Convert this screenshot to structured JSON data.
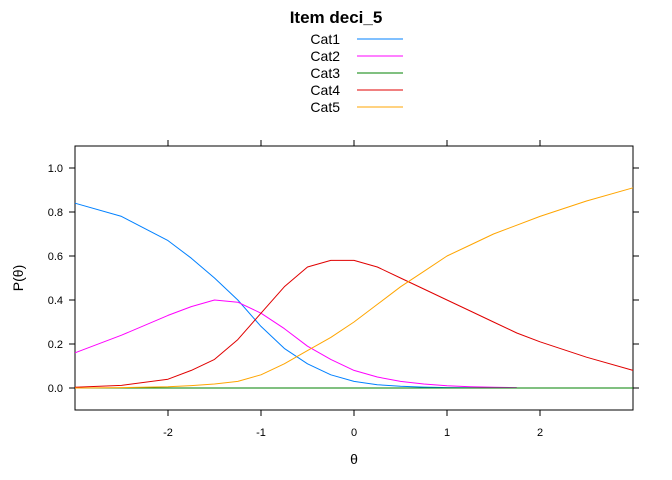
{
  "chart_data": {
    "type": "line",
    "title": "Item deci_5",
    "xlabel": "θ",
    "ylabel": "P(θ)",
    "xlim": [
      -3,
      3
    ],
    "ylim": [
      -0.1,
      1.1
    ],
    "x_ticks": [
      -2,
      -1,
      0,
      1,
      2
    ],
    "x_tick_labels": [
      "-2",
      "-1",
      "0",
      "1",
      "2"
    ],
    "y_ticks": [
      0.0,
      0.2,
      0.4,
      0.6,
      0.8,
      1.0
    ],
    "y_tick_labels": [
      "0.0",
      "0.2",
      "0.4",
      "0.6",
      "0.8",
      "1.0"
    ],
    "grid": false,
    "legend_position": "top-center",
    "x": [
      -3.0,
      -2.5,
      -2.0,
      -1.75,
      -1.5,
      -1.25,
      -1.0,
      -0.75,
      -0.5,
      -0.25,
      0.0,
      0.25,
      0.5,
      0.75,
      1.0,
      1.25,
      1.5,
      1.75,
      2.0,
      2.5,
      3.0
    ],
    "series": [
      {
        "name": "Cat1",
        "color": "#0080ff",
        "values": [
          0.84,
          0.78,
          0.67,
          0.59,
          0.5,
          0.4,
          0.28,
          0.18,
          0.11,
          0.06,
          0.03,
          0.015,
          0.008,
          0.004,
          0.002,
          0.001,
          0.0005,
          null,
          null,
          null,
          null
        ]
      },
      {
        "name": "Cat2",
        "color": "#ff00ff",
        "values": [
          0.16,
          0.24,
          0.33,
          0.37,
          0.4,
          0.39,
          0.34,
          0.27,
          0.19,
          0.13,
          0.08,
          0.05,
          0.03,
          0.018,
          0.01,
          0.006,
          0.003,
          0.002,
          null,
          null,
          null
        ]
      },
      {
        "name": "Cat3",
        "color": "#008000",
        "values": [
          0.0,
          0.0,
          0.0,
          0.0,
          0.0,
          0.0,
          0.0,
          0.0,
          0.0,
          0.0,
          0.0,
          0.0,
          0.0,
          0.0,
          0.0,
          0.0,
          0.0,
          0.0,
          0.0,
          0.0,
          0.0
        ]
      },
      {
        "name": "Cat4",
        "color": "#e00000",
        "values": [
          0.003,
          0.012,
          0.04,
          0.08,
          0.13,
          0.22,
          0.34,
          0.46,
          0.55,
          0.58,
          0.58,
          0.55,
          0.5,
          0.45,
          0.4,
          0.35,
          0.3,
          0.25,
          0.21,
          0.14,
          0.08
        ]
      },
      {
        "name": "Cat5",
        "color": "#ffa500",
        "values": [
          0.0,
          0.002,
          0.006,
          0.011,
          0.018,
          0.03,
          0.06,
          0.11,
          0.17,
          0.23,
          0.3,
          0.38,
          0.46,
          0.53,
          0.6,
          0.65,
          0.7,
          0.74,
          0.78,
          0.85,
          0.91
        ]
      }
    ]
  }
}
